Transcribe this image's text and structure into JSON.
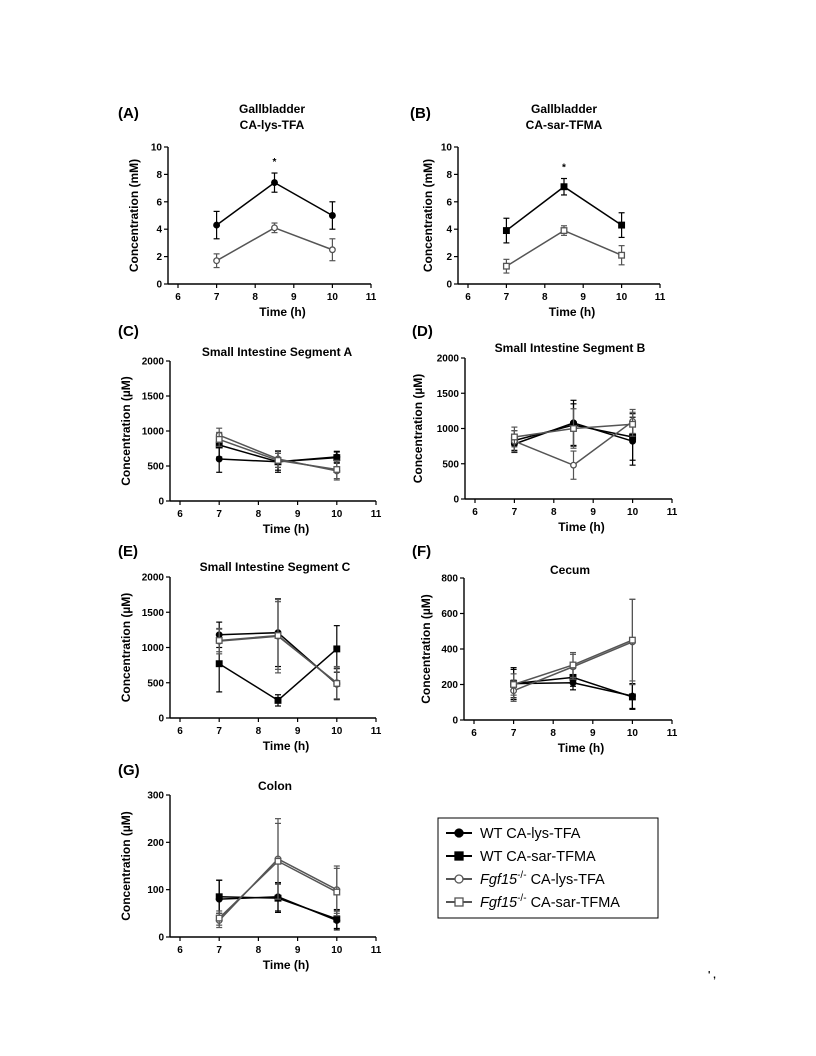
{
  "page_mark": "' ,",
  "legend": {
    "entries": [
      {
        "label": "WT CA-lys-TFA",
        "sup": "",
        "suffix": "",
        "marker": "circle-filled"
      },
      {
        "label": "WT CA-sar-TFMA",
        "sup": "",
        "suffix": "",
        "marker": "square-filled"
      },
      {
        "label": "Fgf15",
        "sup": "-/-",
        "suffix": " CA-lys-TFA",
        "marker": "circle-open"
      },
      {
        "label": "Fgf15",
        "sup": "-/-",
        "suffix": " CA-sar-TFMA",
        "marker": "square-open"
      }
    ]
  },
  "colors": {
    "wt_line": "#000000",
    "ko_line": "#555555",
    "ko_fill": "#ffffff",
    "axis": "#000000"
  },
  "chart_data": [
    {
      "panel": "(A)",
      "type": "line",
      "title": "Gallbladder",
      "subtitle": "CA-lys-TFA",
      "xlabel": "Time (h)",
      "ylabel": "Concentration (mM)",
      "xlim": [
        6,
        11
      ],
      "ylim": [
        0,
        10
      ],
      "xticks": [
        6,
        7,
        8,
        9,
        10,
        11
      ],
      "yticks": [
        0,
        2,
        4,
        6,
        8,
        10
      ],
      "annotations": [
        {
          "text": "*",
          "x": 8.5
        }
      ],
      "series": [
        {
          "marker": "circle-filled",
          "x": [
            7,
            8.5,
            10
          ],
          "y": [
            4.3,
            7.4,
            5.0
          ],
          "err": [
            1.0,
            0.7,
            1.0
          ]
        },
        {
          "marker": "circle-open",
          "x": [
            7,
            8.5,
            10
          ],
          "y": [
            1.7,
            4.1,
            2.5
          ],
          "err": [
            0.5,
            0.35,
            0.8
          ]
        }
      ]
    },
    {
      "panel": "(B)",
      "type": "line",
      "title": "Gallbladder",
      "subtitle": "CA-sar-TFMA",
      "xlabel": "Time (h)",
      "ylabel": "Concentration (mM)",
      "xlim": [
        6,
        11
      ],
      "ylim": [
        0,
        10
      ],
      "xticks": [
        6,
        7,
        8,
        9,
        10,
        11
      ],
      "yticks": [
        0,
        2,
        4,
        6,
        8,
        10
      ],
      "annotations": [
        {
          "text": "*",
          "x": 8.5
        }
      ],
      "series": [
        {
          "marker": "square-filled",
          "x": [
            7,
            8.5,
            10
          ],
          "y": [
            3.9,
            7.1,
            4.3
          ],
          "err": [
            0.9,
            0.6,
            0.9
          ]
        },
        {
          "marker": "square-open",
          "x": [
            7,
            8.5,
            10
          ],
          "y": [
            1.3,
            3.9,
            2.1
          ],
          "err": [
            0.5,
            0.35,
            0.7
          ]
        }
      ]
    },
    {
      "panel": "(C)",
      "type": "line",
      "title": "Small Intestine Segment A",
      "subtitle": "",
      "xlabel": "Time (h)",
      "ylabel": "Concentration (µM)",
      "xlim": [
        6,
        11
      ],
      "ylim": [
        0,
        2000
      ],
      "xticks": [
        6,
        7,
        8,
        9,
        10,
        11
      ],
      "yticks": [
        0,
        500,
        1000,
        1500,
        2000
      ],
      "annotations": [],
      "series": [
        {
          "marker": "circle-filled",
          "x": [
            7,
            8.5,
            10
          ],
          "y": [
            600,
            560,
            630
          ],
          "err": [
            190,
            120,
            80
          ]
        },
        {
          "marker": "square-filled",
          "x": [
            7,
            8.5,
            10
          ],
          "y": [
            800,
            560,
            620
          ],
          "err": [
            170,
            150,
            80
          ]
        },
        {
          "marker": "circle-open",
          "x": [
            7,
            8.5,
            10
          ],
          "y": [
            940,
            600,
            430
          ],
          "err": [
            100,
            120,
            130
          ]
        },
        {
          "marker": "square-open",
          "x": [
            7,
            8.5,
            10
          ],
          "y": [
            880,
            580,
            450
          ],
          "err": [
            100,
            100,
            130
          ]
        }
      ]
    },
    {
      "panel": "(D)",
      "type": "line",
      "title": "Small Intestine Segment B",
      "subtitle": "",
      "xlabel": "Time (h)",
      "ylabel": "Concentration (µM)",
      "xlim": [
        6,
        11
      ],
      "ylim": [
        0,
        2000
      ],
      "xticks": [
        6,
        7,
        8,
        9,
        10,
        11
      ],
      "yticks": [
        0,
        500,
        1000,
        1500,
        2000
      ],
      "annotations": [],
      "series": [
        {
          "marker": "circle-filled",
          "x": [
            7,
            8.5,
            10
          ],
          "y": [
            780,
            1080,
            820
          ],
          "err": [
            120,
            320,
            340
          ]
        },
        {
          "marker": "square-filled",
          "x": [
            7,
            8.5,
            10
          ],
          "y": [
            830,
            1050,
            880
          ],
          "err": [
            140,
            300,
            330
          ]
        },
        {
          "marker": "circle-open",
          "x": [
            7,
            8.5,
            10
          ],
          "y": [
            820,
            480,
            1100
          ],
          "err": [
            150,
            200,
            170
          ]
        },
        {
          "marker": "square-open",
          "x": [
            7,
            8.5,
            10
          ],
          "y": [
            880,
            1000,
            1060
          ],
          "err": [
            140,
            280,
            170
          ]
        }
      ]
    },
    {
      "panel": "(E)",
      "type": "line",
      "title": "Small Intestine Segment C",
      "subtitle": "",
      "xlabel": "Time (h)",
      "ylabel": "Concentration (µM)",
      "xlim": [
        6,
        11
      ],
      "ylim": [
        0,
        2000
      ],
      "xticks": [
        6,
        7,
        8,
        9,
        10,
        11
      ],
      "yticks": [
        0,
        500,
        1000,
        1500,
        2000
      ],
      "annotations": [],
      "series": [
        {
          "marker": "circle-filled",
          "x": [
            7,
            8.5,
            10
          ],
          "y": [
            1180,
            1210,
            480
          ],
          "err": [
            180,
            480,
            220
          ]
        },
        {
          "marker": "square-filled",
          "x": [
            7,
            8.5,
            10
          ],
          "y": [
            770,
            250,
            980
          ],
          "err": [
            400,
            80,
            330
          ]
        },
        {
          "marker": "circle-open",
          "x": [
            7,
            8.5,
            10
          ],
          "y": [
            1090,
            1160,
            500
          ],
          "err": [
            180,
            520,
            230
          ]
        },
        {
          "marker": "square-open",
          "x": [
            7,
            8.5,
            10
          ],
          "y": [
            1100,
            1170,
            490
          ],
          "err": [
            160,
            480,
            220
          ]
        }
      ]
    },
    {
      "panel": "(F)",
      "type": "line",
      "title": "Cecum",
      "subtitle": "",
      "xlabel": "Time (h)",
      "ylabel": "Concentration (µM)",
      "xlim": [
        6,
        11
      ],
      "ylim": [
        0,
        800
      ],
      "xticks": [
        6,
        7,
        8,
        9,
        10,
        11
      ],
      "yticks": [
        0,
        200,
        400,
        600,
        800
      ],
      "annotations": [],
      "series": [
        {
          "marker": "circle-filled",
          "x": [
            7,
            8.5,
            10
          ],
          "y": [
            205,
            210,
            135
          ],
          "err": [
            90,
            40,
            70
          ]
        },
        {
          "marker": "square-filled",
          "x": [
            7,
            8.5,
            10
          ],
          "y": [
            205,
            240,
            130
          ],
          "err": [
            80,
            50,
            70
          ]
        },
        {
          "marker": "circle-open",
          "x": [
            7,
            8.5,
            10
          ],
          "y": [
            165,
            300,
            440
          ],
          "err": [
            60,
            70,
            240
          ]
        },
        {
          "marker": "square-open",
          "x": [
            7,
            8.5,
            10
          ],
          "y": [
            200,
            310,
            450
          ],
          "err": [
            60,
            70,
            230
          ]
        }
      ]
    },
    {
      "panel": "(G)",
      "type": "line",
      "title": "Colon",
      "subtitle": "",
      "xlabel": "Time (h)",
      "ylabel": "Concentration (µM)",
      "xlim": [
        6,
        11
      ],
      "ylim": [
        0,
        300
      ],
      "xticks": [
        6,
        7,
        8,
        9,
        10,
        11
      ],
      "yticks": [
        0,
        100,
        200,
        300
      ],
      "annotations": [],
      "series": [
        {
          "marker": "circle-filled",
          "x": [
            7,
            8.5,
            10
          ],
          "y": [
            80,
            85,
            35
          ],
          "err": [
            40,
            30,
            20
          ]
        },
        {
          "marker": "square-filled",
          "x": [
            7,
            8.5,
            10
          ],
          "y": [
            85,
            82,
            38
          ],
          "err": [
            35,
            30,
            20
          ]
        },
        {
          "marker": "circle-open",
          "x": [
            7,
            8.5,
            10
          ],
          "y": [
            35,
            165,
            100
          ],
          "err": [
            15,
            85,
            50
          ]
        },
        {
          "marker": "square-open",
          "x": [
            7,
            8.5,
            10
          ],
          "y": [
            40,
            160,
            95
          ],
          "err": [
            15,
            80,
            50
          ]
        }
      ]
    }
  ]
}
